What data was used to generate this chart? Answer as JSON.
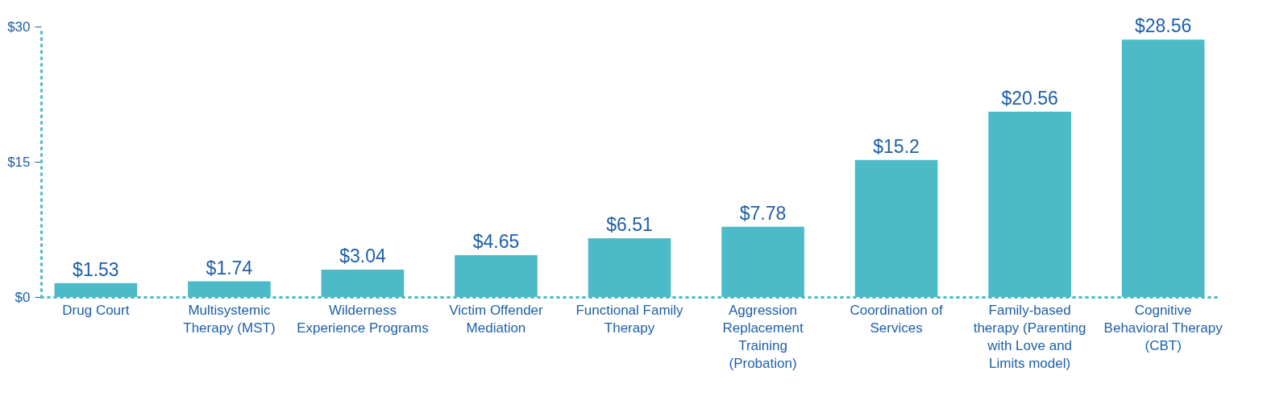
{
  "chart_data": {
    "type": "bar",
    "categories": [
      "Drug Court",
      "Multisystemic Therapy (MST)",
      "Wilderness Experience Programs",
      "Victim Offender Mediation",
      "Functional Family Therapy",
      "Aggression Replacement Training (Probation)",
      "Coordination of Services",
      "Family-based therapy (Parenting with Love and Limits model)",
      "Cognitive Behavioral Therapy (CBT)"
    ],
    "values": [
      1.53,
      1.74,
      3.04,
      4.65,
      6.51,
      7.78,
      15.2,
      20.56,
      28.56
    ],
    "value_labels": [
      "$1.53",
      "$1.74",
      "$3.04",
      "$4.65",
      "$6.51",
      "$7.78",
      "$15.2",
      "$20.56",
      "$28.56"
    ],
    "color": "#4dbac7",
    "ylim": [
      0,
      30
    ],
    "yticks": [
      {
        "value": 0,
        "label": "$0"
      },
      {
        "value": 15,
        "label": "$15"
      },
      {
        "value": 30,
        "label": "$30"
      }
    ],
    "grid": false
  }
}
